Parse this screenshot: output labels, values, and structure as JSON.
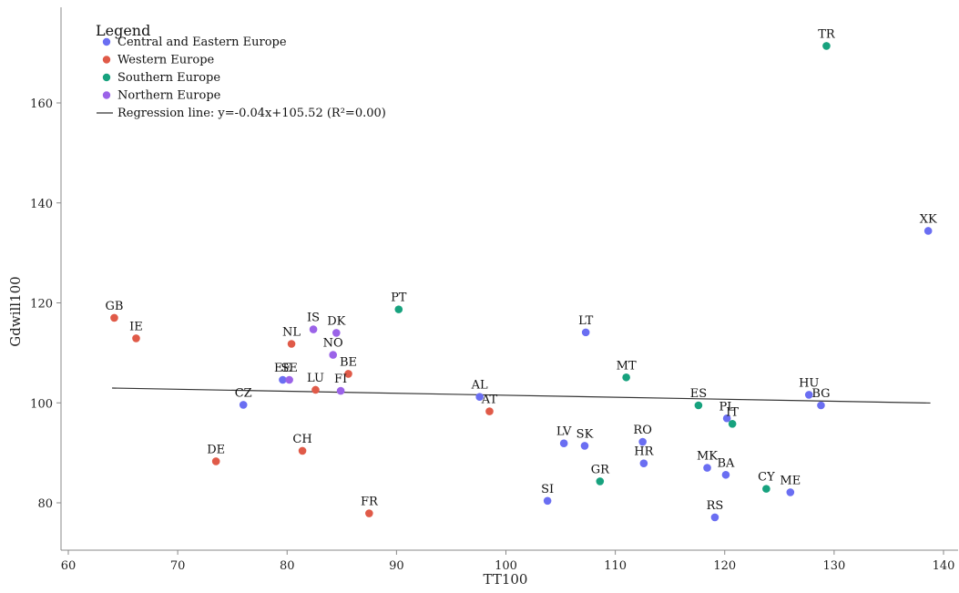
{
  "colors": {
    "Central and Eastern Europe": "#6a6ef2",
    "Western Europe": "#e05a48",
    "Southern Europe": "#17a27e",
    "Northern Europe": "#9b63e8",
    "regression": "#333333"
  },
  "chart_data": {
    "type": "scatter",
    "title": "",
    "xlabel": "TT100",
    "ylabel": "Gdwill100",
    "xlim": [
      60,
      140
    ],
    "ylim": [
      71,
      175
    ],
    "x_ticks": [
      60,
      70,
      80,
      90,
      100,
      110,
      120,
      130,
      140
    ],
    "y_ticks": [
      80,
      100,
      120,
      140,
      160
    ],
    "grid": false,
    "legend": {
      "title": "Legend",
      "position": "top-left",
      "entries": [
        "Central and Eastern Europe",
        "Western Europe",
        "Southern Europe",
        "Northern Europe",
        "Regression line: y=-0.04x+105.52 (R²=0.00)"
      ]
    },
    "regression": {
      "label": "Regression line: y=-0.04x+105.52 (R²=0.00)",
      "slope": -0.04,
      "intercept": 105.52,
      "x_range": [
        64,
        138.8
      ]
    },
    "series": [
      {
        "name": "Central and Eastern Europe",
        "points": [
          {
            "label": "XK",
            "x": 138.6,
            "y": 134.4
          },
          {
            "label": "HU",
            "x": 127.7,
            "y": 101.6
          },
          {
            "label": "BG",
            "x": 128.8,
            "y": 99.5
          },
          {
            "label": "LT",
            "x": 107.3,
            "y": 114.1
          },
          {
            "label": "CZ",
            "x": 76.0,
            "y": 99.6
          },
          {
            "label": "EE",
            "x": 79.6,
            "y": 104.6
          },
          {
            "label": "AL",
            "x": 97.6,
            "y": 101.2
          },
          {
            "label": "LV",
            "x": 105.3,
            "y": 91.9
          },
          {
            "label": "SK",
            "x": 107.2,
            "y": 91.4
          },
          {
            "label": "RO",
            "x": 112.5,
            "y": 92.2
          },
          {
            "label": "HR",
            "x": 112.6,
            "y": 87.9
          },
          {
            "label": "MK",
            "x": 118.4,
            "y": 87.0
          },
          {
            "label": "BA",
            "x": 120.1,
            "y": 85.6
          },
          {
            "label": "ME",
            "x": 126.0,
            "y": 82.1
          },
          {
            "label": "SI",
            "x": 103.8,
            "y": 80.4
          },
          {
            "label": "RS",
            "x": 119.1,
            "y": 77.1
          },
          {
            "label": "PL",
            "x": 120.2,
            "y": 96.9
          }
        ]
      },
      {
        "name": "Western Europe",
        "points": [
          {
            "label": "GB",
            "x": 64.2,
            "y": 117.0
          },
          {
            "label": "IE",
            "x": 66.2,
            "y": 112.9
          },
          {
            "label": "NL",
            "x": 80.4,
            "y": 111.8
          },
          {
            "label": "BE",
            "x": 85.6,
            "y": 105.8
          },
          {
            "label": "LU",
            "x": 82.6,
            "y": 102.6
          },
          {
            "label": "AT",
            "x": 98.5,
            "y": 98.3
          },
          {
            "label": "DE",
            "x": 73.5,
            "y": 88.3
          },
          {
            "label": "CH",
            "x": 81.4,
            "y": 90.4
          },
          {
            "label": "FR",
            "x": 87.5,
            "y": 77.9
          }
        ]
      },
      {
        "name": "Southern Europe",
        "points": [
          {
            "label": "TR",
            "x": 129.3,
            "y": 171.4
          },
          {
            "label": "PT",
            "x": 90.2,
            "y": 118.7
          },
          {
            "label": "MT",
            "x": 111.0,
            "y": 105.1
          },
          {
            "label": "ES",
            "x": 117.6,
            "y": 99.5
          },
          {
            "label": "IT",
            "x": 120.7,
            "y": 95.8
          },
          {
            "label": "GR",
            "x": 108.6,
            "y": 84.3
          },
          {
            "label": "CY",
            "x": 123.8,
            "y": 82.8
          }
        ]
      },
      {
        "name": "Northern Europe",
        "points": [
          {
            "label": "IS",
            "x": 82.4,
            "y": 114.7
          },
          {
            "label": "DK",
            "x": 84.5,
            "y": 114.0
          },
          {
            "label": "NO",
            "x": 84.2,
            "y": 109.6
          },
          {
            "label": "SE",
            "x": 80.2,
            "y": 104.6
          },
          {
            "label": "FI",
            "x": 84.9,
            "y": 102.4
          }
        ]
      }
    ]
  }
}
